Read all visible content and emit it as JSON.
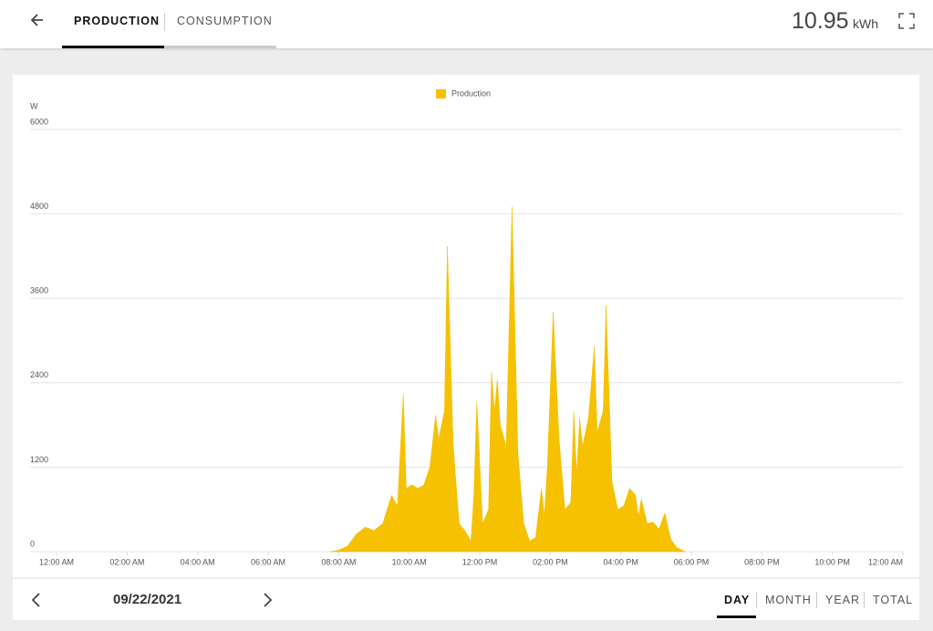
{
  "header": {
    "tabs": [
      "PRODUCTION",
      "CONSUMPTION"
    ],
    "total": {
      "value": 10.95,
      "unit": "kWh"
    }
  },
  "chart_data": {
    "type": "area",
    "y_label": "W",
    "legend": "top",
    "xlim": [
      0,
      24
    ],
    "xticks": [
      {
        "value": 0,
        "label": "12:00 AM"
      },
      {
        "value": 2,
        "label": "02:00 AM"
      },
      {
        "value": 4,
        "label": "04:00 AM"
      },
      {
        "value": 6,
        "label": "06:00 AM"
      },
      {
        "value": 8,
        "label": "08:00 AM"
      },
      {
        "value": 10,
        "label": "10:00 AM"
      },
      {
        "value": 12,
        "label": "12:00 PM"
      },
      {
        "value": 14,
        "label": "02:00 PM"
      },
      {
        "value": 16,
        "label": "04:00 PM"
      },
      {
        "value": 18,
        "label": "06:00 PM"
      },
      {
        "value": 20,
        "label": "08:00 PM"
      },
      {
        "value": 22,
        "label": "10:00 PM"
      },
      {
        "value": 24,
        "label": "12:00 AM"
      }
    ],
    "ylim": [
      0,
      6000
    ],
    "yticks": [
      0,
      1200,
      2400,
      3600,
      4800,
      6000
    ],
    "grid": true,
    "x": [
      7.75,
      8,
      8.25,
      8.5,
      8.75,
      9,
      9.25,
      9.5,
      9.667,
      9.833,
      9.917,
      10.083,
      10.25,
      10.417,
      10.583,
      10.75,
      10.833,
      11,
      11.083,
      11.25,
      11.417,
      11.583,
      11.75,
      11.833,
      11.917,
      12.083,
      12.25,
      12.333,
      12.417,
      12.5,
      12.583,
      12.75,
      12.917,
      13.083,
      13.25,
      13.417,
      13.583,
      13.75,
      13.833,
      13.917,
      14.083,
      14.25,
      14.417,
      14.583,
      14.667,
      14.75,
      14.833,
      14.917,
      15.083,
      15.25,
      15.333,
      15.5,
      15.583,
      15.75,
      15.917,
      16.083,
      16.25,
      16.417,
      16.5,
      16.583,
      16.75,
      16.917,
      17.083,
      17.25,
      17.417,
      17.583,
      17.833
    ],
    "series": [
      {
        "name": "Production",
        "color": "#f5c100",
        "values": [
          0,
          20,
          80,
          250,
          350,
          300,
          400,
          800,
          650,
          2250,
          900,
          950,
          900,
          950,
          1200,
          1940,
          1600,
          2000,
          4340,
          1500,
          400,
          300,
          150,
          800,
          2140,
          400,
          600,
          2550,
          2000,
          2450,
          1800,
          1500,
          4900,
          1400,
          400,
          150,
          200,
          900,
          500,
          1200,
          3410,
          1600,
          600,
          700,
          2000,
          1100,
          1900,
          1500,
          1900,
          2920,
          1700,
          2000,
          3500,
          1000,
          600,
          650,
          900,
          800,
          500,
          750,
          400,
          420,
          320,
          550,
          180,
          60,
          0
        ]
      }
    ]
  },
  "footer": {
    "date": "09/22/2021",
    "periods": [
      "DAY",
      "MONTH",
      "YEAR",
      "TOTAL"
    ]
  }
}
